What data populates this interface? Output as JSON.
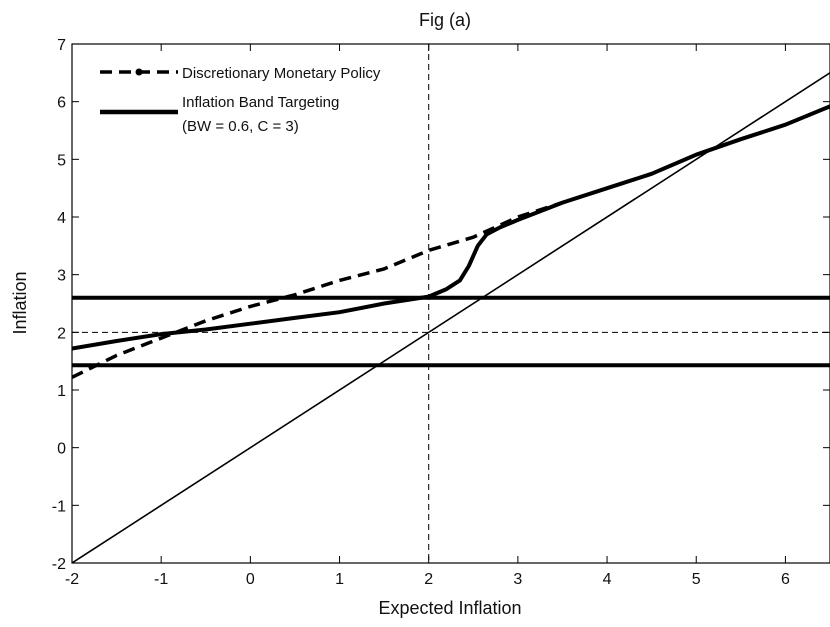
{
  "chart_data": {
    "type": "line",
    "title": "Fig (a)",
    "xlabel": "Expected Inflation",
    "ylabel": "Inflation",
    "xlim": [
      -2,
      6.5
    ],
    "ylim": [
      -2,
      7
    ],
    "xticks": [
      -2,
      -1,
      0,
      1,
      2,
      3,
      4,
      5,
      6
    ],
    "yticks": [
      -2,
      -1,
      0,
      1,
      2,
      3,
      4,
      5,
      6,
      7
    ],
    "grid": false,
    "legend_position": "top-left",
    "legend": [
      {
        "label": "Discretionary Monetary Policy",
        "style": "dashed-marker"
      },
      {
        "label": "Inflation Band Targeting",
        "label2": "(BW = 0.6, C = 3)",
        "style": "solid-thick"
      }
    ],
    "series": [
      {
        "name": "Discretionary Monetary Policy",
        "style": "dashed",
        "x": [
          -2,
          -1.5,
          -1,
          -0.5,
          0,
          0.5,
          1,
          1.5,
          2,
          2.5,
          3,
          3.5,
          4,
          4.5,
          5,
          5.5,
          6,
          6.5
        ],
        "y": [
          1.22,
          1.6,
          1.9,
          2.2,
          2.45,
          2.65,
          2.9,
          3.1,
          3.42,
          3.65,
          4.0,
          4.25,
          4.5,
          4.75,
          5.08,
          5.35,
          5.6,
          5.92
        ]
      },
      {
        "name": "Inflation Band Targeting",
        "style": "solid-thick",
        "x": [
          -2,
          -1.5,
          -1,
          -0.5,
          0,
          0.5,
          1,
          1.5,
          2,
          2.2,
          2.35,
          2.45,
          2.55,
          2.65,
          2.8,
          3.0,
          3.5,
          4,
          4.5,
          5,
          5.5,
          6,
          6.5
        ],
        "y": [
          1.72,
          1.85,
          1.97,
          2.05,
          2.15,
          2.25,
          2.35,
          2.5,
          2.62,
          2.75,
          2.9,
          3.15,
          3.5,
          3.7,
          3.82,
          3.95,
          4.25,
          4.5,
          4.75,
          5.08,
          5.35,
          5.6,
          5.92
        ]
      },
      {
        "name": "45-degree line",
        "style": "solid-thin",
        "x": [
          -2,
          6.5
        ],
        "y": [
          -2,
          6.5
        ]
      }
    ],
    "reference_lines": {
      "horizontal_thick": [
        1.43,
        2.6
      ],
      "horizontal_dashed": [
        2
      ],
      "vertical_dashed": [
        2
      ]
    }
  }
}
